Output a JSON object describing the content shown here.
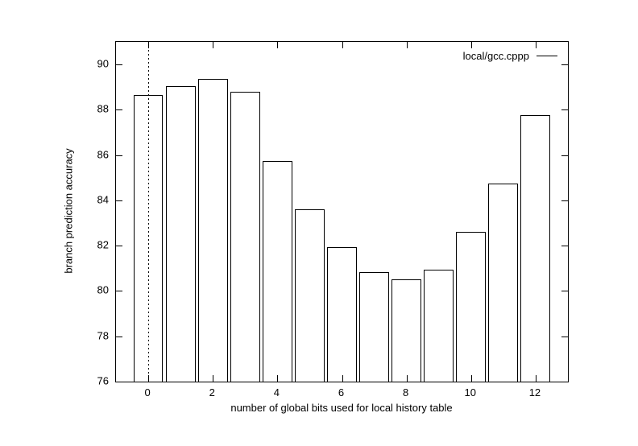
{
  "chart_data": {
    "type": "bar",
    "title": "",
    "xlabel": "number of global bits used for local history table",
    "ylabel": "branch prediction accuracy",
    "legend": {
      "label": "local/gcc.cppp",
      "position": "top-right-inside",
      "sample": "solid line"
    },
    "series": [
      {
        "name": "local/gcc.cppp",
        "x": [
          0,
          1,
          2,
          3,
          4,
          5,
          6,
          7,
          8,
          9,
          10,
          11,
          12
        ],
        "values": [
          88.65,
          89.05,
          89.35,
          88.8,
          85.75,
          83.6,
          81.95,
          80.85,
          80.5,
          80.95,
          82.6,
          84.75,
          87.75
        ]
      }
    ],
    "xlim": [
      -1,
      13
    ],
    "ylim": [
      76,
      91
    ],
    "x_ticks": [
      0,
      2,
      4,
      6,
      8,
      10,
      12
    ],
    "y_ticks": [
      76,
      78,
      80,
      82,
      84,
      86,
      88,
      90
    ],
    "tick_style": "inward, mirrored on all four borders",
    "grid": false,
    "zero_axis": "dotted vertical line at x=0",
    "bar_width": 0.92,
    "bar_fill": "transparent",
    "ink": "#000000",
    "background": "#ffffff"
  }
}
